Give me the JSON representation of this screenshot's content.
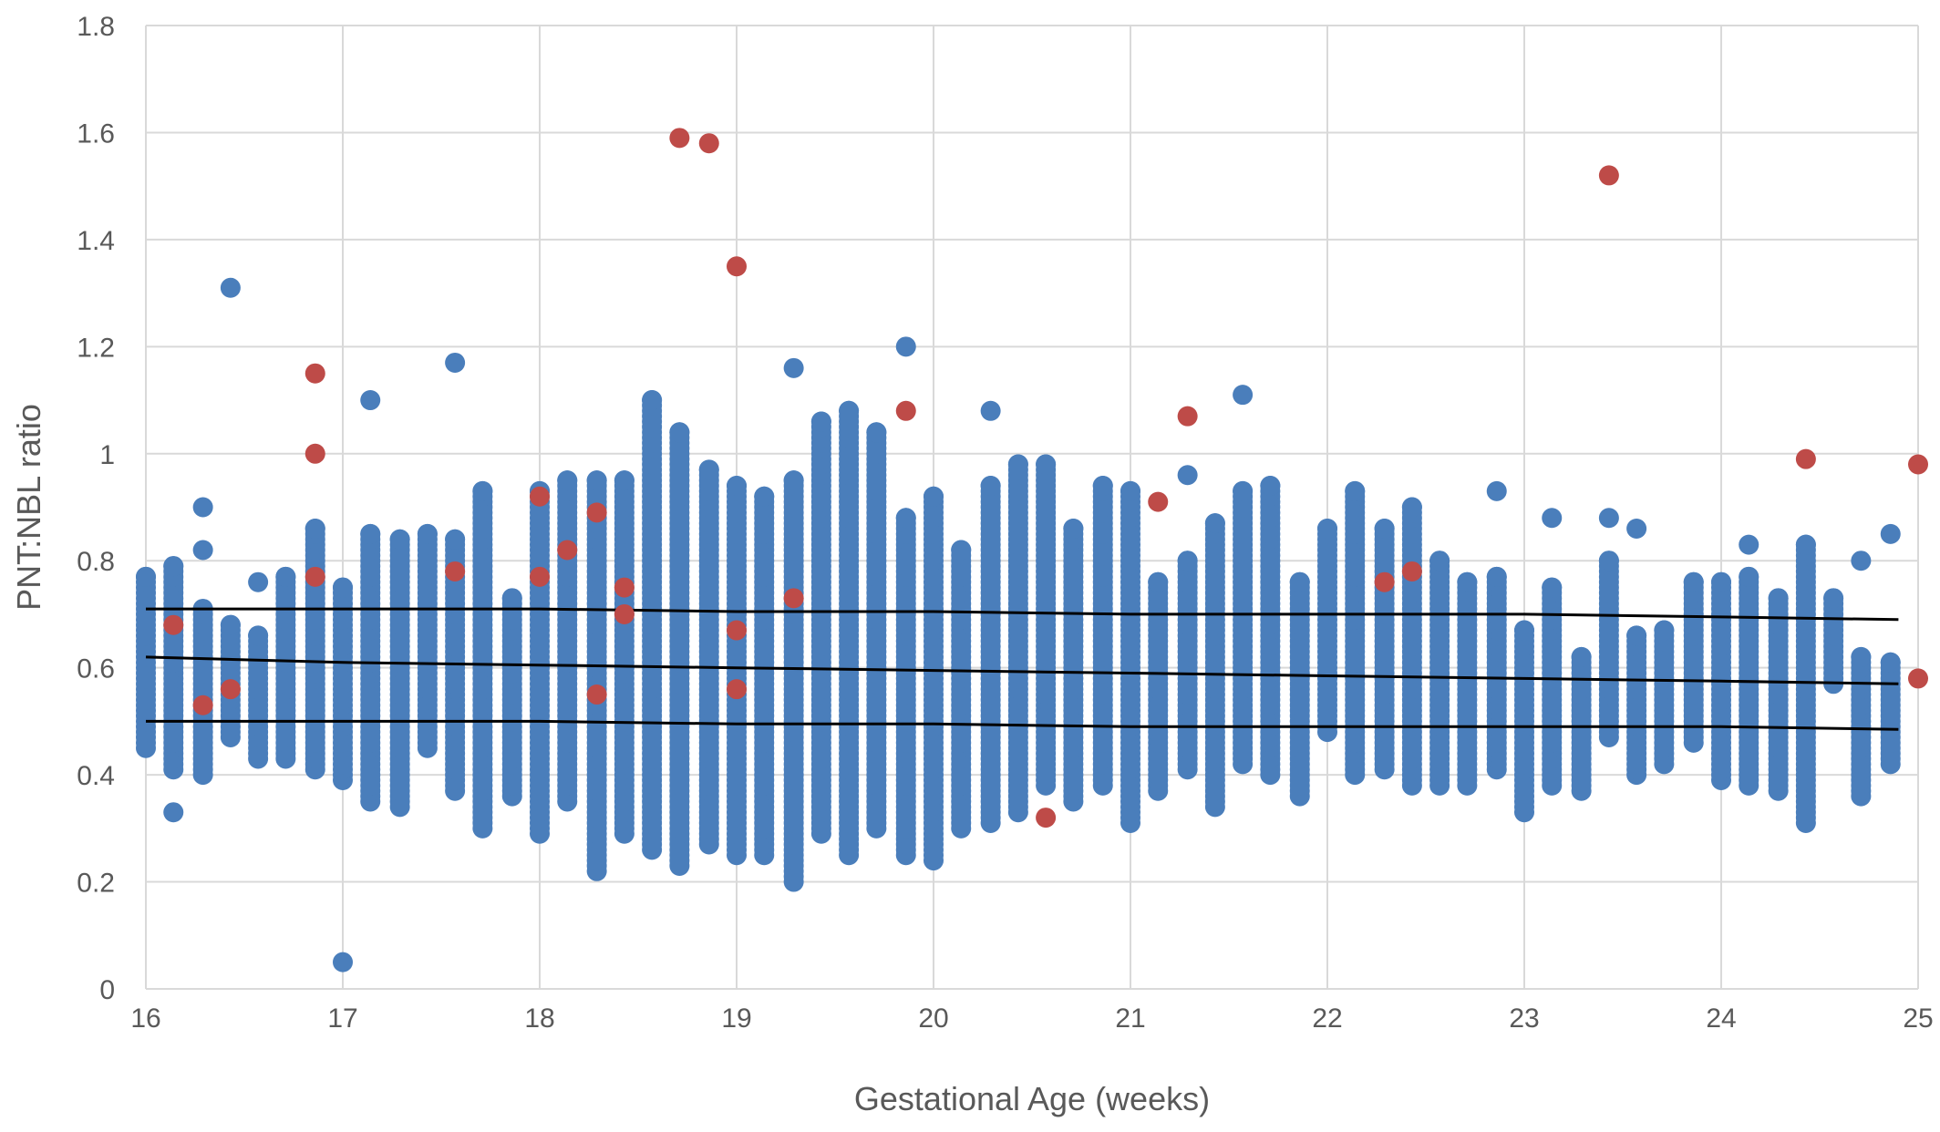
{
  "chart_data": {
    "type": "scatter",
    "title": "",
    "xlabel": "Gestational Age (weeks)",
    "ylabel": "PNT:NBL ratio",
    "xlim": [
      16,
      25
    ],
    "ylim": [
      0,
      1.8
    ],
    "x_ticks": [
      "16",
      "17",
      "18",
      "19",
      "20",
      "21",
      "22",
      "23",
      "24",
      "25"
    ],
    "y_ticks": [
      "0",
      "0.2",
      "0.4",
      "0.6",
      "0.8",
      "1",
      "1.2",
      "1.4",
      "1.6",
      "1.8"
    ],
    "grid": true,
    "legend": "none",
    "colors": {
      "normal": "#4a7ebb",
      "affected": "#be4b48",
      "reference": "#000000",
      "grid": "#d9d9d9"
    },
    "series": [
      {
        "marker_color": "#4a7ebb",
        "columns": [
          {
            "x": 16.0,
            "ymin": 0.45,
            "ymax": 0.77,
            "extra": []
          },
          {
            "x": 16.14,
            "ymin": 0.41,
            "ymax": 0.79,
            "extra": [
              0.33
            ]
          },
          {
            "x": 16.29,
            "ymin": 0.4,
            "ymax": 0.71,
            "extra": [
              0.82,
              0.9
            ]
          },
          {
            "x": 16.43,
            "ymin": 0.47,
            "ymax": 0.68,
            "extra": [
              1.31
            ]
          },
          {
            "x": 16.57,
            "ymin": 0.43,
            "ymax": 0.66,
            "extra": [
              0.76
            ]
          },
          {
            "x": 16.71,
            "ymin": 0.43,
            "ymax": 0.77,
            "extra": []
          },
          {
            "x": 16.86,
            "ymin": 0.41,
            "ymax": 0.86,
            "extra": []
          },
          {
            "x": 17.0,
            "ymin": 0.39,
            "ymax": 0.75,
            "extra": [
              0.05
            ]
          },
          {
            "x": 17.14,
            "ymin": 0.35,
            "ymax": 0.85,
            "extra": [
              1.1
            ]
          },
          {
            "x": 17.29,
            "ymin": 0.34,
            "ymax": 0.84,
            "extra": []
          },
          {
            "x": 17.43,
            "ymin": 0.45,
            "ymax": 0.85,
            "extra": []
          },
          {
            "x": 17.57,
            "ymin": 0.37,
            "ymax": 0.84,
            "extra": [
              1.17
            ]
          },
          {
            "x": 17.71,
            "ymin": 0.3,
            "ymax": 0.93,
            "extra": []
          },
          {
            "x": 17.86,
            "ymin": 0.36,
            "ymax": 0.73,
            "extra": []
          },
          {
            "x": 18.0,
            "ymin": 0.29,
            "ymax": 0.93,
            "extra": []
          },
          {
            "x": 18.14,
            "ymin": 0.35,
            "ymax": 0.95,
            "extra": []
          },
          {
            "x": 18.29,
            "ymin": 0.22,
            "ymax": 0.95,
            "extra": []
          },
          {
            "x": 18.43,
            "ymin": 0.29,
            "ymax": 0.95,
            "extra": []
          },
          {
            "x": 18.57,
            "ymin": 0.26,
            "ymax": 1.1,
            "extra": []
          },
          {
            "x": 18.71,
            "ymin": 0.23,
            "ymax": 1.04,
            "extra": []
          },
          {
            "x": 18.86,
            "ymin": 0.27,
            "ymax": 0.97,
            "extra": []
          },
          {
            "x": 19.0,
            "ymin": 0.25,
            "ymax": 0.94,
            "extra": []
          },
          {
            "x": 19.14,
            "ymin": 0.25,
            "ymax": 0.92,
            "extra": []
          },
          {
            "x": 19.29,
            "ymin": 0.2,
            "ymax": 0.95,
            "extra": [
              1.16
            ]
          },
          {
            "x": 19.43,
            "ymin": 0.29,
            "ymax": 1.06,
            "extra": []
          },
          {
            "x": 19.57,
            "ymin": 0.25,
            "ymax": 1.08,
            "extra": []
          },
          {
            "x": 19.71,
            "ymin": 0.3,
            "ymax": 1.04,
            "extra": []
          },
          {
            "x": 19.86,
            "ymin": 0.25,
            "ymax": 0.88,
            "extra": [
              1.2
            ]
          },
          {
            "x": 20.0,
            "ymin": 0.24,
            "ymax": 0.92,
            "extra": []
          },
          {
            "x": 20.14,
            "ymin": 0.3,
            "ymax": 0.82,
            "extra": []
          },
          {
            "x": 20.29,
            "ymin": 0.31,
            "ymax": 0.94,
            "extra": [
              1.08
            ]
          },
          {
            "x": 20.43,
            "ymin": 0.33,
            "ymax": 0.98,
            "extra": []
          },
          {
            "x": 20.57,
            "ymin": 0.38,
            "ymax": 0.98,
            "extra": []
          },
          {
            "x": 20.71,
            "ymin": 0.35,
            "ymax": 0.86,
            "extra": []
          },
          {
            "x": 20.86,
            "ymin": 0.38,
            "ymax": 0.94,
            "extra": []
          },
          {
            "x": 21.0,
            "ymin": 0.31,
            "ymax": 0.93,
            "extra": []
          },
          {
            "x": 21.14,
            "ymin": 0.37,
            "ymax": 0.76,
            "extra": []
          },
          {
            "x": 21.29,
            "ymin": 0.41,
            "ymax": 0.8,
            "extra": [
              0.96
            ]
          },
          {
            "x": 21.43,
            "ymin": 0.34,
            "ymax": 0.87,
            "extra": []
          },
          {
            "x": 21.57,
            "ymin": 0.42,
            "ymax": 0.93,
            "extra": [
              1.11
            ]
          },
          {
            "x": 21.71,
            "ymin": 0.4,
            "ymax": 0.94,
            "extra": []
          },
          {
            "x": 21.86,
            "ymin": 0.36,
            "ymax": 0.76,
            "extra": []
          },
          {
            "x": 22.0,
            "ymin": 0.48,
            "ymax": 0.86,
            "extra": []
          },
          {
            "x": 22.14,
            "ymin": 0.4,
            "ymax": 0.93,
            "extra": []
          },
          {
            "x": 22.29,
            "ymin": 0.41,
            "ymax": 0.86,
            "extra": []
          },
          {
            "x": 22.43,
            "ymin": 0.38,
            "ymax": 0.9,
            "extra": []
          },
          {
            "x": 22.57,
            "ymin": 0.38,
            "ymax": 0.8,
            "extra": []
          },
          {
            "x": 22.71,
            "ymin": 0.38,
            "ymax": 0.76,
            "extra": []
          },
          {
            "x": 22.86,
            "ymin": 0.41,
            "ymax": 0.77,
            "extra": [
              0.93
            ]
          },
          {
            "x": 23.0,
            "ymin": 0.33,
            "ymax": 0.67,
            "extra": []
          },
          {
            "x": 23.14,
            "ymin": 0.38,
            "ymax": 0.75,
            "extra": [
              0.88
            ]
          },
          {
            "x": 23.29,
            "ymin": 0.37,
            "ymax": 0.62,
            "extra": []
          },
          {
            "x": 23.43,
            "ymin": 0.47,
            "ymax": 0.8,
            "extra": [
              0.88
            ]
          },
          {
            "x": 23.57,
            "ymin": 0.4,
            "ymax": 0.66,
            "extra": [
              0.86
            ]
          },
          {
            "x": 23.71,
            "ymin": 0.42,
            "ymax": 0.67,
            "extra": []
          },
          {
            "x": 23.86,
            "ymin": 0.46,
            "ymax": 0.76,
            "extra": []
          },
          {
            "x": 24.0,
            "ymin": 0.39,
            "ymax": 0.76,
            "extra": []
          },
          {
            "x": 24.14,
            "ymin": 0.38,
            "ymax": 0.77,
            "extra": [
              0.83
            ]
          },
          {
            "x": 24.29,
            "ymin": 0.37,
            "ymax": 0.73,
            "extra": []
          },
          {
            "x": 24.43,
            "ymin": 0.31,
            "ymax": 0.83,
            "extra": []
          },
          {
            "x": 24.57,
            "ymin": 0.57,
            "ymax": 0.73,
            "extra": []
          },
          {
            "x": 24.71,
            "ymin": 0.36,
            "ymax": 0.62,
            "extra": [
              0.8
            ]
          },
          {
            "x": 24.86,
            "ymin": 0.42,
            "ymax": 0.61,
            "extra": [
              0.85
            ]
          }
        ]
      },
      {
        "marker_color": "#be4b48",
        "points": [
          [
            16.14,
            0.68
          ],
          [
            16.29,
            0.53
          ],
          [
            16.43,
            0.56
          ],
          [
            16.86,
            1.15
          ],
          [
            16.86,
            1.0
          ],
          [
            16.86,
            0.77
          ],
          [
            17.57,
            0.78
          ],
          [
            18.0,
            0.92
          ],
          [
            18.0,
            0.77
          ],
          [
            18.14,
            0.82
          ],
          [
            18.29,
            0.89
          ],
          [
            18.29,
            0.55
          ],
          [
            18.43,
            0.75
          ],
          [
            18.43,
            0.7
          ],
          [
            18.71,
            1.59
          ],
          [
            18.86,
            1.58
          ],
          [
            19.0,
            1.35
          ],
          [
            19.0,
            0.67
          ],
          [
            19.0,
            0.56
          ],
          [
            19.29,
            0.73
          ],
          [
            19.86,
            1.08
          ],
          [
            20.57,
            0.32
          ],
          [
            21.14,
            0.91
          ],
          [
            21.29,
            1.07
          ],
          [
            22.29,
            0.76
          ],
          [
            22.43,
            0.78
          ],
          [
            23.43,
            1.52
          ],
          [
            24.43,
            0.99
          ],
          [
            25.0,
            0.98
          ],
          [
            25.0,
            0.58
          ]
        ]
      },
      {
        "type": "line",
        "color": "#000000",
        "lines": [
          [
            [
              16,
              0.71
            ],
            [
              17,
              0.71
            ],
            [
              18,
              0.71
            ],
            [
              19,
              0.705
            ],
            [
              20,
              0.705
            ],
            [
              21,
              0.7
            ],
            [
              22,
              0.7
            ],
            [
              23,
              0.7
            ],
            [
              24,
              0.695
            ],
            [
              24.9,
              0.69
            ]
          ],
          [
            [
              16,
              0.62
            ],
            [
              17,
              0.61
            ],
            [
              18,
              0.605
            ],
            [
              19,
              0.6
            ],
            [
              20,
              0.595
            ],
            [
              21,
              0.59
            ],
            [
              22,
              0.585
            ],
            [
              23,
              0.58
            ],
            [
              24,
              0.575
            ],
            [
              24.9,
              0.57
            ]
          ],
          [
            [
              16,
              0.5
            ],
            [
              17,
              0.5
            ],
            [
              18,
              0.5
            ],
            [
              19,
              0.495
            ],
            [
              20,
              0.495
            ],
            [
              21,
              0.49
            ],
            [
              22,
              0.49
            ],
            [
              23,
              0.49
            ],
            [
              24,
              0.49
            ],
            [
              24.9,
              0.485
            ]
          ]
        ]
      }
    ]
  }
}
